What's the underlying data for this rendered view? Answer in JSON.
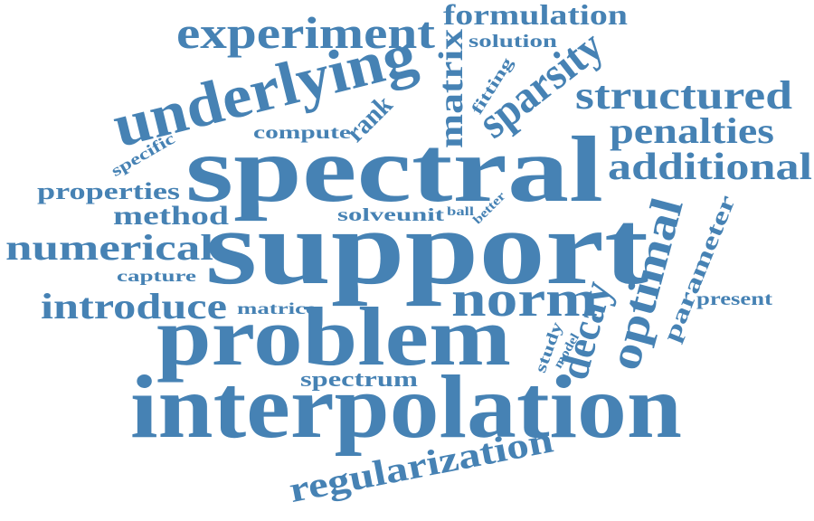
{
  "theme": {
    "background": "#ffffff",
    "word_color": "#4682b4"
  },
  "words": [
    {
      "id": "interpolation",
      "text": "interpolation"
    },
    {
      "id": "support",
      "text": "support"
    },
    {
      "id": "spectral",
      "text": "spectral"
    },
    {
      "id": "problem",
      "text": "problem"
    },
    {
      "id": "underlying",
      "text": "underlying"
    },
    {
      "id": "experiment",
      "text": "experiment"
    },
    {
      "id": "formulation",
      "text": "formulation"
    },
    {
      "id": "solution",
      "text": "solution"
    },
    {
      "id": "matrix",
      "text": "matrix"
    },
    {
      "id": "fitting",
      "text": "fitting"
    },
    {
      "id": "sparsity",
      "text": "sparsity"
    },
    {
      "id": "structured",
      "text": "structured"
    },
    {
      "id": "penalties",
      "text": "penalties"
    },
    {
      "id": "additional",
      "text": "additional"
    },
    {
      "id": "rank",
      "text": "rank"
    },
    {
      "id": "compute",
      "text": "compute"
    },
    {
      "id": "specific",
      "text": "specific"
    },
    {
      "id": "properties",
      "text": "properties"
    },
    {
      "id": "method",
      "text": "method"
    },
    {
      "id": "numerical",
      "text": "numerical"
    },
    {
      "id": "capture",
      "text": "capture"
    },
    {
      "id": "introduce",
      "text": "introduce"
    },
    {
      "id": "matrice",
      "text": "matrice"
    },
    {
      "id": "solveunit",
      "text": "solveunit"
    },
    {
      "id": "ball",
      "text": "ball"
    },
    {
      "id": "better",
      "text": "better"
    },
    {
      "id": "optimal",
      "text": "optimal"
    },
    {
      "id": "parameter",
      "text": "parameter"
    },
    {
      "id": "present",
      "text": "present"
    },
    {
      "id": "norm",
      "text": "norm"
    },
    {
      "id": "decay",
      "text": "decay"
    },
    {
      "id": "study",
      "text": "study"
    },
    {
      "id": "model",
      "text": "model"
    },
    {
      "id": "spectrum",
      "text": "spectrum"
    },
    {
      "id": "regularization",
      "text": "regularization"
    }
  ]
}
